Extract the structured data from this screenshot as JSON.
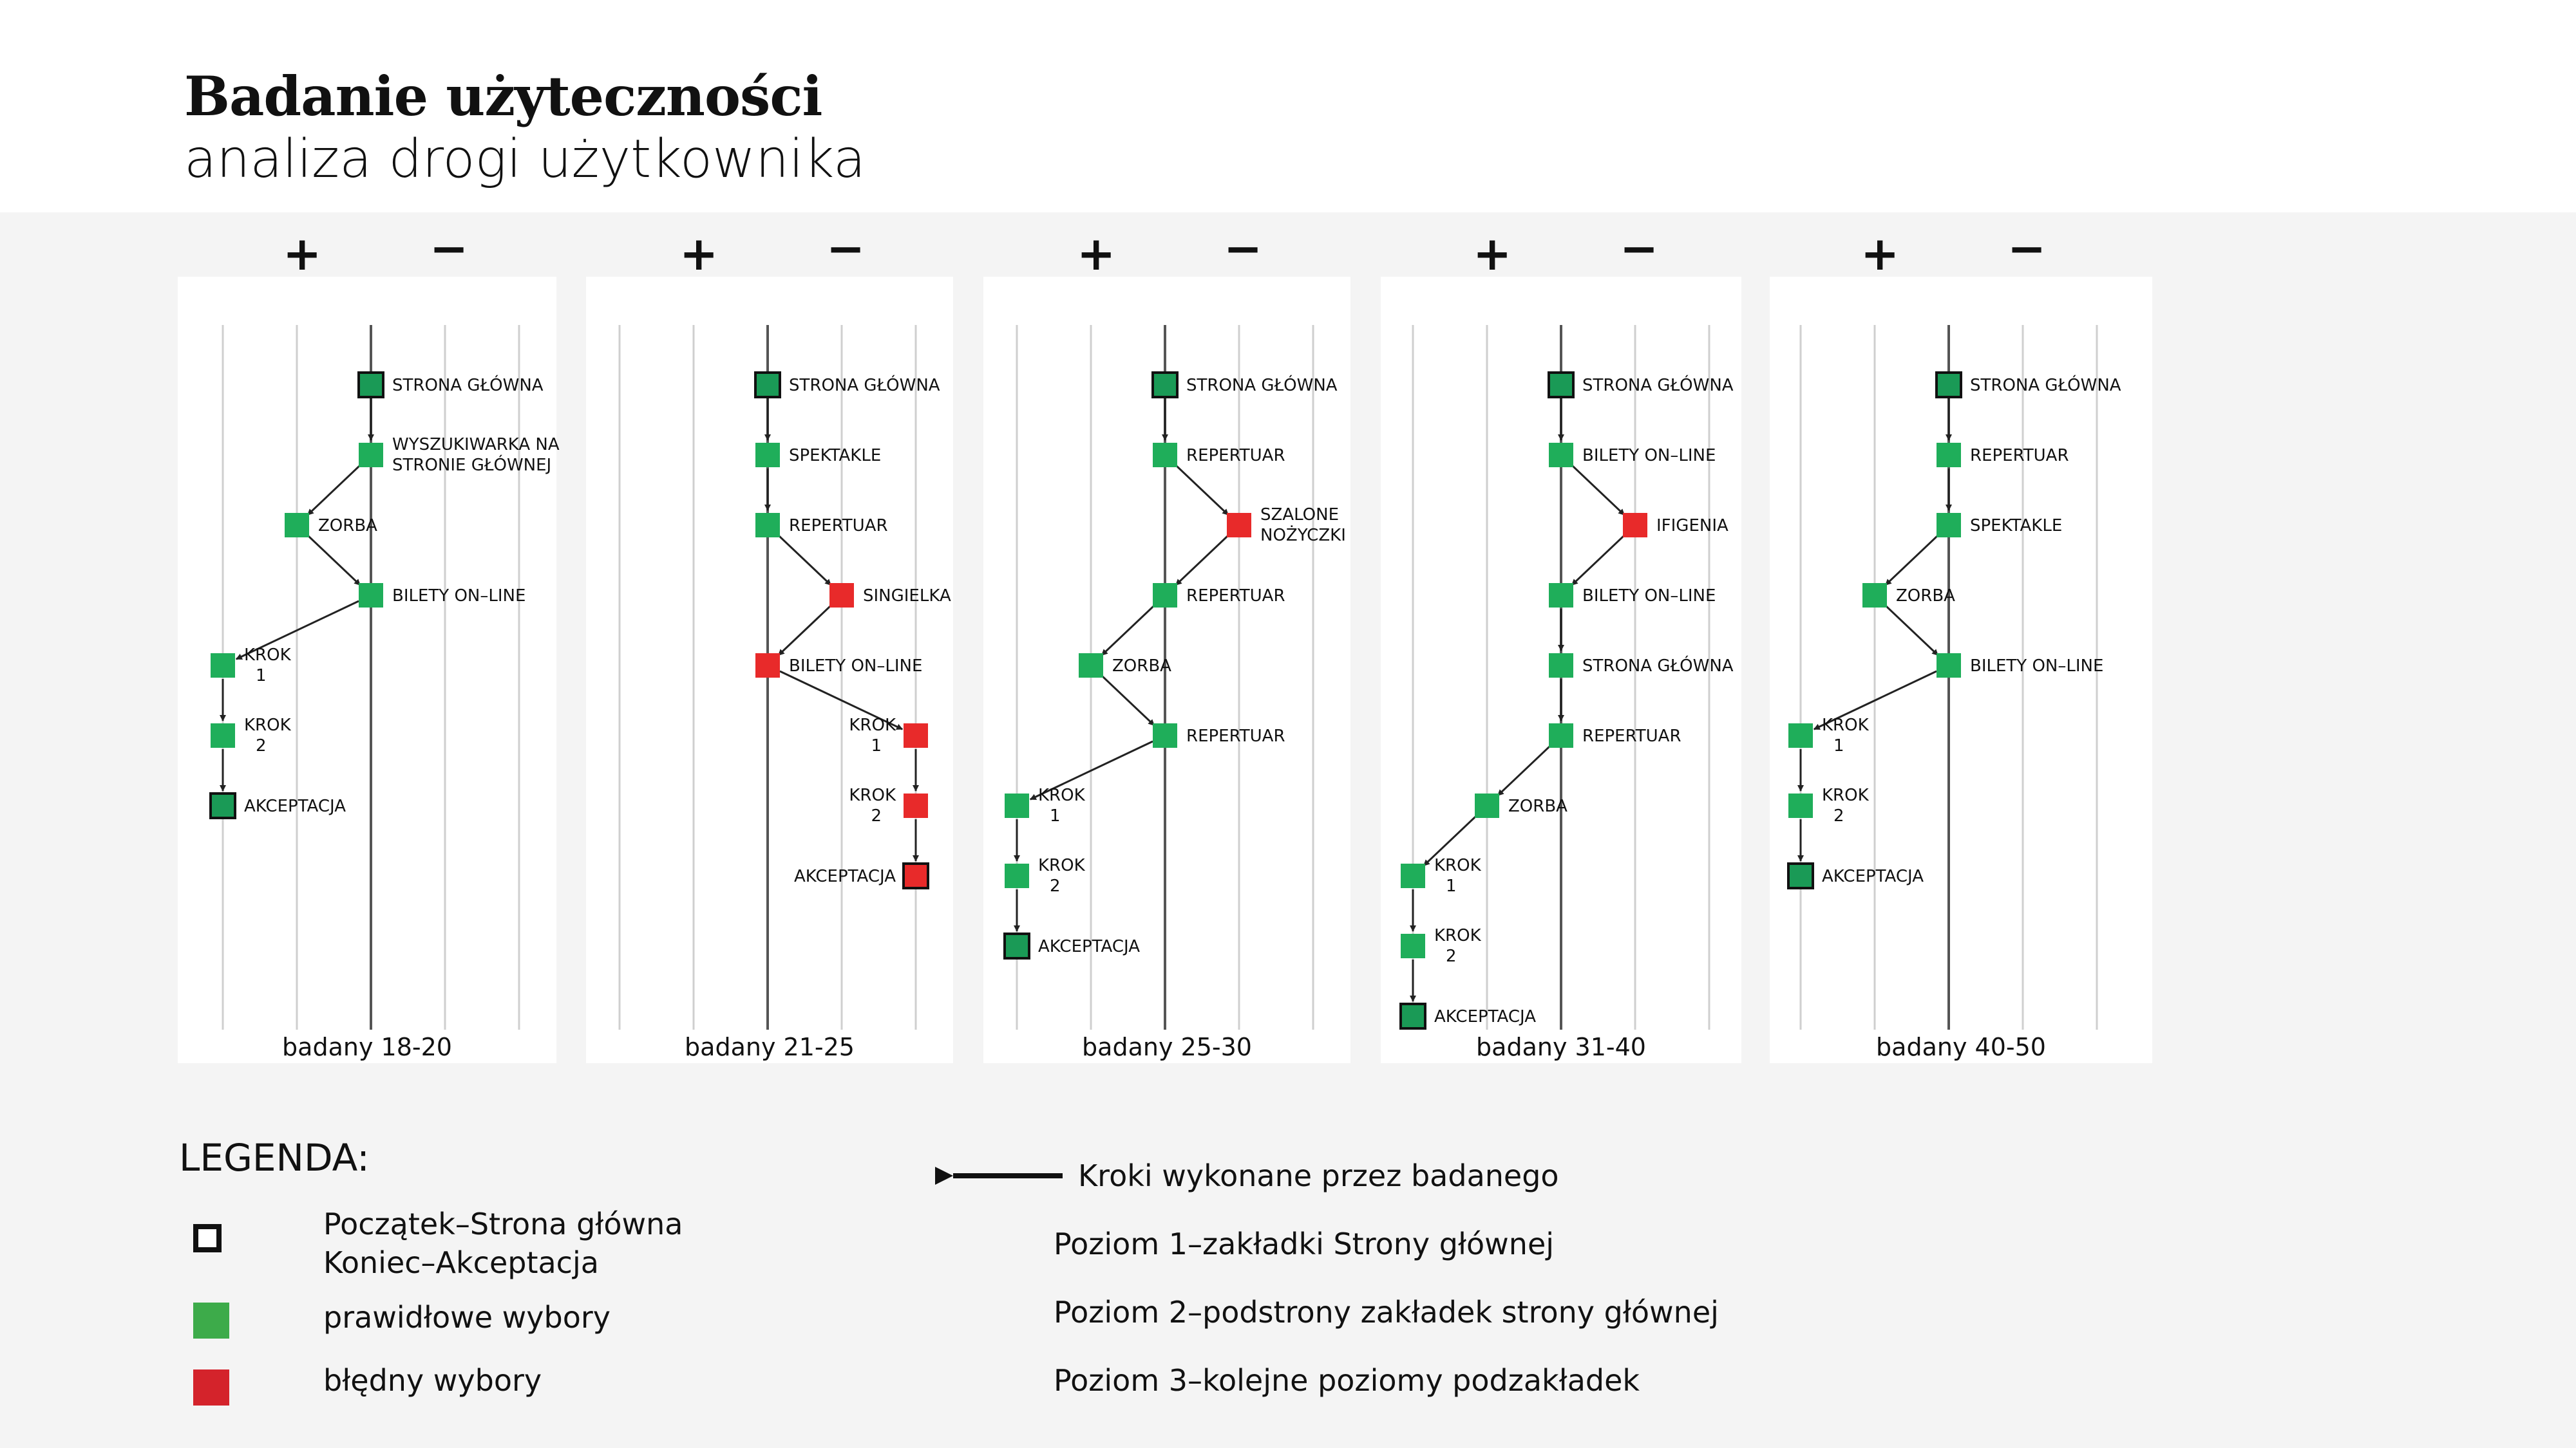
{
  "header": {
    "title": "Badanie użyteczności",
    "subtitle": "analiza drogi użytkownika"
  },
  "colors": {
    "correct": "#1fae5a",
    "wrong": "#e82a2a",
    "start_end_fill": "#1a9a56",
    "line": "#222222",
    "grid": "#cfcfcf"
  },
  "panels": [
    {
      "caption": "badany 18-20",
      "plus": "+",
      "minus": "−",
      "nodes": [
        {
          "id": "a1",
          "label": [
            "STRONA GŁÓWNA"
          ],
          "type": "start",
          "lane": 3,
          "step": 0
        },
        {
          "id": "a2",
          "label": [
            "WYSZUKIWARKA NA",
            "STRONIE GŁÓWNEJ"
          ],
          "type": "ok",
          "lane": 3,
          "step": 1
        },
        {
          "id": "a3",
          "label": [
            "ZORBA"
          ],
          "type": "ok",
          "lane": 2,
          "step": 2
        },
        {
          "id": "a4",
          "label": [
            "BILETY ON–LINE"
          ],
          "type": "ok",
          "lane": 3,
          "step": 3
        },
        {
          "id": "a5",
          "label": [
            "KROK",
            "1"
          ],
          "type": "ok",
          "lane": 1,
          "step": 4
        },
        {
          "id": "a6",
          "label": [
            "KROK",
            "2"
          ],
          "type": "ok",
          "lane": 1,
          "step": 5
        },
        {
          "id": "a7",
          "label": [
            "AKCEPTACJA"
          ],
          "type": "end",
          "lane": 1,
          "step": 6
        }
      ]
    },
    {
      "caption": "badany 21-25",
      "plus": "+",
      "minus": "−",
      "nodes": [
        {
          "id": "b1",
          "label": [
            "STRONA GŁÓWNA"
          ],
          "type": "start",
          "lane": 3,
          "step": 0
        },
        {
          "id": "b2",
          "label": [
            "SPEKTAKLE"
          ],
          "type": "ok",
          "lane": 3,
          "step": 1
        },
        {
          "id": "b3",
          "label": [
            "REPERTUAR"
          ],
          "type": "ok",
          "lane": 3,
          "step": 2
        },
        {
          "id": "b4",
          "label": [
            "SINGIELKA"
          ],
          "type": "bad",
          "lane": 4,
          "step": 3
        },
        {
          "id": "b5",
          "label": [
            "BILETY ON–LINE"
          ],
          "type": "bad",
          "lane": 3,
          "step": 4
        },
        {
          "id": "b6",
          "label": [
            "KROK",
            "1"
          ],
          "type": "bad",
          "lane": 5,
          "step": 5
        },
        {
          "id": "b7",
          "label": [
            "KROK",
            "2"
          ],
          "type": "bad",
          "lane": 5,
          "step": 6
        },
        {
          "id": "b8",
          "label": [
            "AKCEPTACJA"
          ],
          "type": "endbad",
          "lane": 5,
          "step": 7
        }
      ]
    },
    {
      "caption": "badany 25-30",
      "plus": "+",
      "minus": "−",
      "nodes": [
        {
          "id": "c1",
          "label": [
            "STRONA GŁÓWNA"
          ],
          "type": "start",
          "lane": 3,
          "step": 0
        },
        {
          "id": "c2",
          "label": [
            "REPERTUAR"
          ],
          "type": "ok",
          "lane": 3,
          "step": 1
        },
        {
          "id": "c3",
          "label": [
            "SZALONE",
            "NOŻYCZKI"
          ],
          "type": "bad",
          "lane": 4,
          "step": 2
        },
        {
          "id": "c4",
          "label": [
            "REPERTUAR"
          ],
          "type": "ok",
          "lane": 3,
          "step": 3
        },
        {
          "id": "c5",
          "label": [
            "ZORBA"
          ],
          "type": "ok",
          "lane": 2,
          "step": 4
        },
        {
          "id": "c6",
          "label": [
            "REPERTUAR"
          ],
          "type": "ok",
          "lane": 3,
          "step": 5
        },
        {
          "id": "c7",
          "label": [
            "KROK",
            "1"
          ],
          "type": "ok",
          "lane": 1,
          "step": 6
        },
        {
          "id": "c8",
          "label": [
            "KROK",
            "2"
          ],
          "type": "ok",
          "lane": 1,
          "step": 7
        },
        {
          "id": "c9",
          "label": [
            "AKCEPTACJA"
          ],
          "type": "end",
          "lane": 1,
          "step": 8
        }
      ]
    },
    {
      "caption": "badany 31-40",
      "plus": "+",
      "minus": "−",
      "nodes": [
        {
          "id": "d1",
          "label": [
            "STRONA GŁÓWNA"
          ],
          "type": "start",
          "lane": 3,
          "step": 0
        },
        {
          "id": "d2",
          "label": [
            "BILETY ON–LINE"
          ],
          "type": "ok",
          "lane": 3,
          "step": 1
        },
        {
          "id": "d3",
          "label": [
            "IFIGENIA"
          ],
          "type": "bad",
          "lane": 4,
          "step": 2
        },
        {
          "id": "d4",
          "label": [
            "BILETY ON–LINE"
          ],
          "type": "ok",
          "lane": 3,
          "step": 3
        },
        {
          "id": "d5",
          "label": [
            "STRONA GŁÓWNA"
          ],
          "type": "ok",
          "lane": 3,
          "step": 4
        },
        {
          "id": "d6",
          "label": [
            "REPERTUAR"
          ],
          "type": "ok",
          "lane": 3,
          "step": 5
        },
        {
          "id": "d7",
          "label": [
            "ZORBA"
          ],
          "type": "ok",
          "lane": 2,
          "step": 6
        },
        {
          "id": "d8",
          "label": [
            "KROK",
            "1"
          ],
          "type": "ok",
          "lane": 1,
          "step": 7
        },
        {
          "id": "d9",
          "label": [
            "KROK",
            "2"
          ],
          "type": "ok",
          "lane": 1,
          "step": 8
        },
        {
          "id": "d10",
          "label": [
            "AKCEPTACJA"
          ],
          "type": "end",
          "lane": 1,
          "step": 9
        }
      ]
    },
    {
      "caption": "badany 40-50",
      "plus": "+",
      "minus": "−",
      "nodes": [
        {
          "id": "e1",
          "label": [
            "STRONA GŁÓWNA"
          ],
          "type": "start",
          "lane": 3,
          "step": 0
        },
        {
          "id": "e2",
          "label": [
            "REPERTUAR"
          ],
          "type": "ok",
          "lane": 3,
          "step": 1
        },
        {
          "id": "e3",
          "label": [
            "SPEKTAKLE"
          ],
          "type": "ok",
          "lane": 3,
          "step": 2
        },
        {
          "id": "e4",
          "label": [
            "ZORBA"
          ],
          "type": "ok",
          "lane": 2,
          "step": 3
        },
        {
          "id": "e5",
          "label": [
            "BILETY ON–LINE"
          ],
          "type": "ok",
          "lane": 3,
          "step": 4
        },
        {
          "id": "e6",
          "label": [
            "KROK",
            "1"
          ],
          "type": "ok",
          "lane": 1,
          "step": 5
        },
        {
          "id": "e7",
          "label": [
            "KROK",
            "2"
          ],
          "type": "ok",
          "lane": 1,
          "step": 6
        },
        {
          "id": "e8",
          "label": [
            "AKCEPTACJA"
          ],
          "type": "end",
          "lane": 1,
          "step": 7
        }
      ]
    }
  ],
  "legend": {
    "title": "LEGENDA:",
    "start_end_line1": "Początek–Strona główna",
    "start_end_line2": "Koniec–Akceptacja",
    "correct": "prawidłowe wybory",
    "wrong": "błędny wybory",
    "arrow": "Kroki wykonane przez badanego",
    "level1": "Poziom 1–zakładki Strony głównej",
    "level2": "Poziom 2–podstrony zakładek strony głównej",
    "level3": "Poziom 3–kolejne poziomy podzakładek"
  }
}
